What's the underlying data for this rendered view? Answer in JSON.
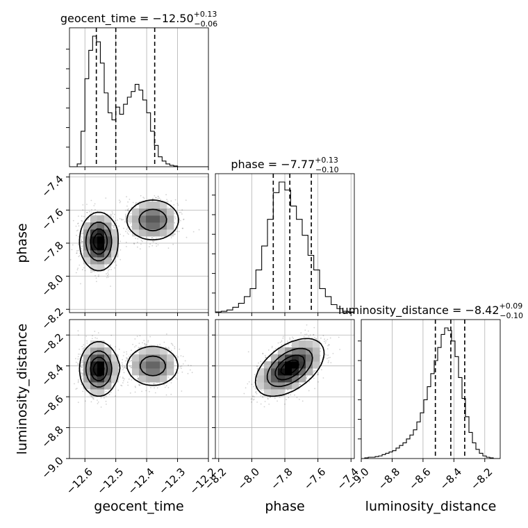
{
  "chart_data": {
    "type": "corner",
    "grid": true,
    "parameters": [
      {
        "name": "geocent_time",
        "axis_label": "geocent_time",
        "title_prefix": "geocent_time = ",
        "title_value": "−12.50",
        "title_plus": "+0.13",
        "title_minus": "−0.06",
        "range": [
          -12.65,
          -12.2
        ],
        "ticks": [
          -12.6,
          -12.5,
          -12.4,
          -12.3,
          -12.2
        ],
        "tick_labels": [
          "−12.6",
          "−12.5",
          "−12.4",
          "−12.3",
          "−12.2"
        ],
        "quantiles": [
          -12.563,
          -12.5,
          -12.374
        ],
        "histogram": {
          "bin_edges": [
            -12.65,
            -12.6375,
            -12.625,
            -12.6125,
            -12.6,
            -12.5875,
            -12.575,
            -12.5625,
            -12.55,
            -12.5375,
            -12.525,
            -12.5125,
            -12.5,
            -12.4875,
            -12.475,
            -12.4625,
            -12.45,
            -12.4375,
            -12.425,
            -12.4125,
            -12.4,
            -12.3875,
            -12.375,
            -12.3625,
            -12.35,
            -12.3375,
            -12.325,
            -12.3125,
            -12.3,
            -12.2875,
            -12.275,
            -12.2625,
            -12.25,
            -12.2375,
            -12.225,
            -12.2125,
            -12.2
          ],
          "counts": [
            0,
            0,
            0.02,
            0.25,
            0.62,
            0.82,
            0.92,
            0.88,
            0.73,
            0.52,
            0.38,
            0.33,
            0.42,
            0.37,
            0.44,
            0.49,
            0.53,
            0.58,
            0.54,
            0.47,
            0.38,
            0.25,
            0.15,
            0.07,
            0.04,
            0.02,
            0.01,
            0.005,
            0,
            0,
            0,
            0,
            0,
            0,
            0,
            0
          ]
        }
      },
      {
        "name": "phase",
        "axis_label": "phase",
        "title_prefix": "phase = ",
        "title_value": "−7.77",
        "title_plus": "+0.13",
        "title_minus": "−0.10",
        "range": [
          -8.22,
          -7.38
        ],
        "ticks": [
          -8.2,
          -8.0,
          -7.8,
          -7.6,
          -7.4
        ],
        "tick_labels": [
          "−8.2",
          "−8.0",
          "−7.8",
          "−7.6",
          "−7.4"
        ],
        "quantiles": [
          -7.87,
          -7.77,
          -7.64
        ],
        "histogram": {
          "bin_edges": [
            -8.22,
            -8.185,
            -8.15,
            -8.115,
            -8.08,
            -8.045,
            -8.01,
            -7.975,
            -7.94,
            -7.905,
            -7.87,
            -7.835,
            -7.8,
            -7.765,
            -7.73,
            -7.695,
            -7.66,
            -7.625,
            -7.59,
            -7.555,
            -7.52,
            -7.485,
            -7.45,
            -7.415,
            -7.38
          ],
          "counts": [
            0.005,
            0.01,
            0.02,
            0.04,
            0.07,
            0.12,
            0.18,
            0.32,
            0.5,
            0.7,
            0.9,
            0.98,
            0.92,
            0.8,
            0.7,
            0.58,
            0.43,
            0.32,
            0.18,
            0.12,
            0.06,
            0.03,
            0.01,
            0.005
          ]
        }
      },
      {
        "name": "luminosity_distance",
        "axis_label": "luminosity_distance",
        "title_prefix": "luminosity_distance = ",
        "title_value": "−8.42",
        "title_plus": "+0.09",
        "title_minus": "−0.10",
        "range": [
          -9.0,
          -8.1
        ],
        "ticks": [
          -9.0,
          -8.8,
          -8.6,
          -8.4,
          -8.2
        ],
        "tick_labels": [
          "−9.0",
          "−8.8",
          "−8.6",
          "−8.4",
          "−8.2"
        ],
        "quantiles": [
          -8.52,
          -8.42,
          -8.33
        ],
        "histogram": {
          "bin_edges": [
            -9.0,
            -8.9775,
            -8.955,
            -8.9325,
            -8.91,
            -8.8875,
            -8.865,
            -8.8425,
            -8.82,
            -8.7975,
            -8.775,
            -8.7525,
            -8.73,
            -8.7075,
            -8.685,
            -8.6625,
            -8.64,
            -8.6175,
            -8.595,
            -8.5725,
            -8.55,
            -8.5275,
            -8.505,
            -8.4825,
            -8.46,
            -8.4375,
            -8.415,
            -8.3925,
            -8.37,
            -8.3475,
            -8.325,
            -8.3025,
            -8.28,
            -8.2575,
            -8.235,
            -8.2125,
            -8.19,
            -8.1675,
            -8.145,
            -8.1225,
            -8.1
          ],
          "counts": [
            0,
            0.005,
            0.01,
            0.01,
            0.015,
            0.02,
            0.03,
            0.04,
            0.05,
            0.06,
            0.08,
            0.1,
            0.12,
            0.15,
            0.18,
            0.22,
            0.28,
            0.35,
            0.45,
            0.55,
            0.65,
            0.75,
            0.85,
            0.95,
            1.0,
            0.98,
            0.9,
            0.78,
            0.62,
            0.46,
            0.32,
            0.2,
            0.12,
            0.07,
            0.04,
            0.02,
            0.01,
            0.005,
            0,
            0
          ]
        }
      }
    ],
    "pairs": [
      {
        "x_param": "geocent_time",
        "y_param": "phase",
        "modes": [
          {
            "center": [
              -12.555,
              -7.79
            ],
            "sigma": [
              0.03,
              0.085
            ],
            "weight": 0.58
          },
          {
            "center": [
              -12.38,
              -7.66
            ],
            "sigma": [
              0.045,
              0.065
            ],
            "weight": 0.42
          }
        ]
      },
      {
        "x_param": "geocent_time",
        "y_param": "luminosity_distance",
        "modes": [
          {
            "center": [
              -12.555,
              -8.42
            ],
            "sigma": [
              0.03,
              0.085
            ],
            "weight": 0.58
          },
          {
            "center": [
              -12.38,
              -8.4
            ],
            "sigma": [
              0.045,
              0.07
            ],
            "weight": 0.42
          }
        ]
      },
      {
        "x_param": "phase",
        "y_param": "luminosity_distance",
        "modes": [
          {
            "center": [
              -7.77,
              -8.41
            ],
            "sigma": [
              0.1,
              0.09
            ],
            "weight": 1.0,
            "rho": 0.5
          }
        ]
      }
    ],
    "contour_levels": [
      0.118,
      0.393,
      0.675,
      0.865
    ]
  }
}
